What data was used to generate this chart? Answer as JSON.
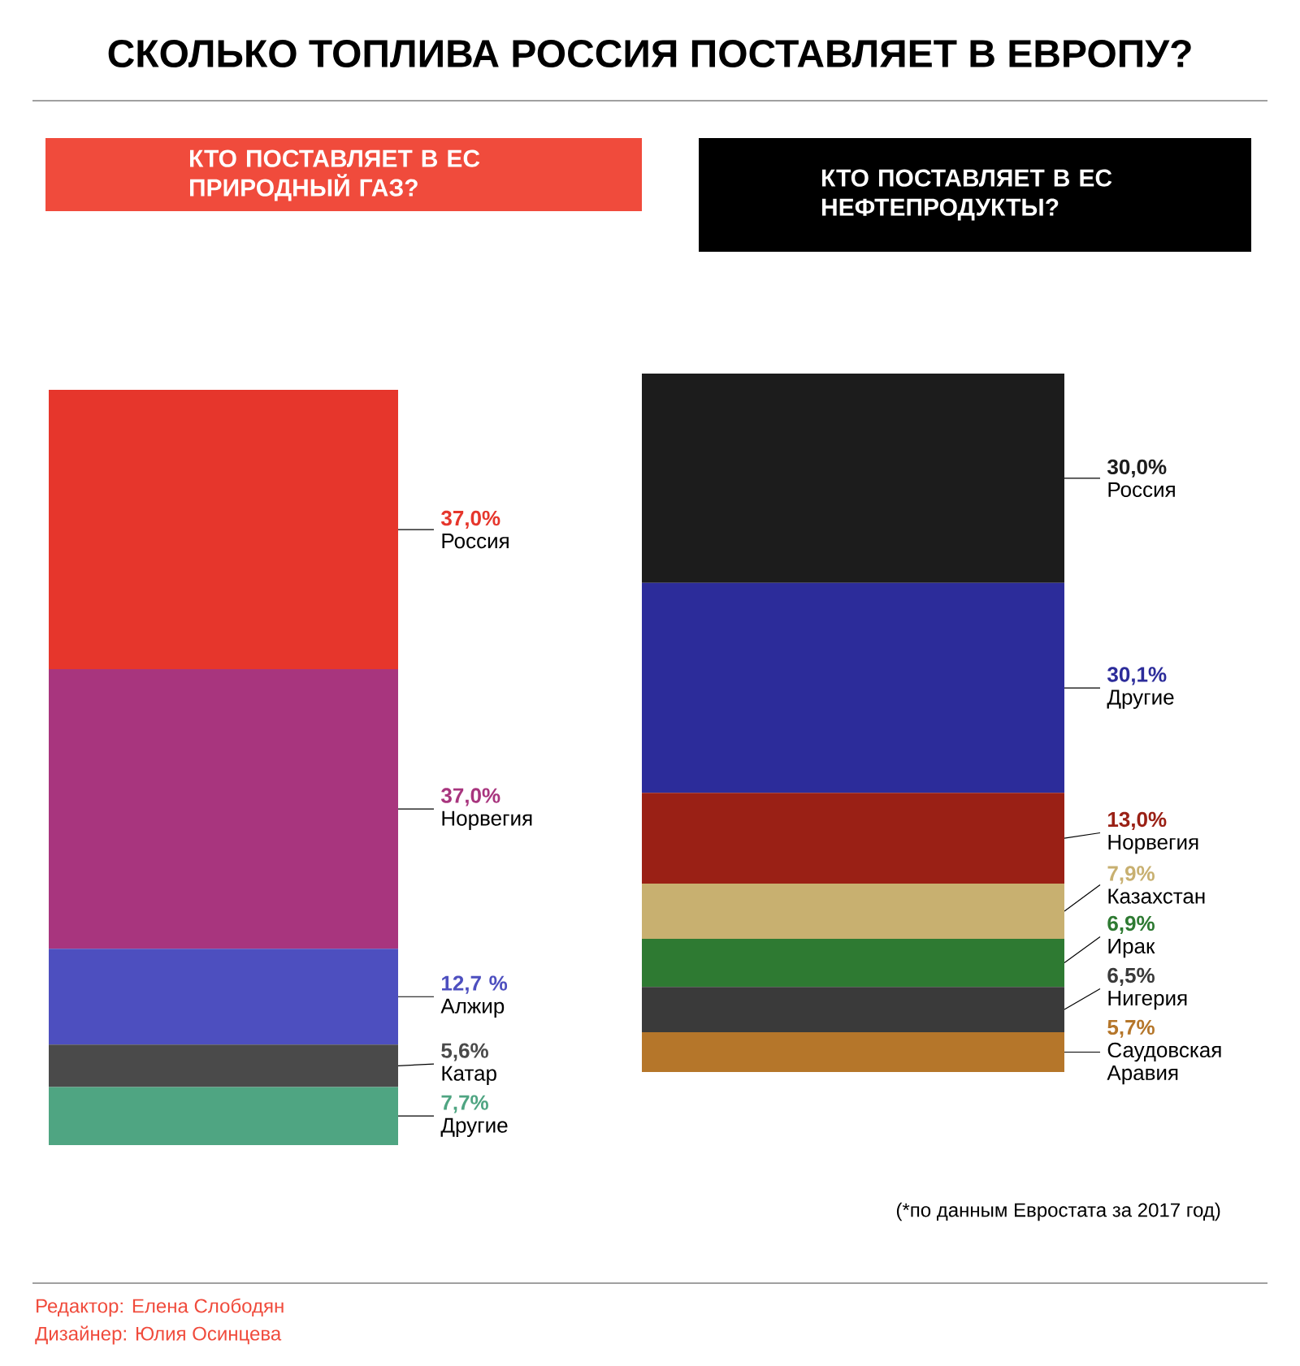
{
  "chart_data": [
    {
      "type": "bar",
      "title": "СКОЛЬКО ТОПЛИВА РОССИЯ ПОСТАВЛЯЕТ В ЕВРОПУ?",
      "subtitle": "КТО ПОСТАВЛЯЕТ В ЕС ПРИРОДНЫЙ ГАЗ?",
      "stacked": true,
      "categories": [
        null
      ],
      "series": [
        {
          "name": "Другие",
          "color": "#4fa582",
          "values": [
            7.7
          ],
          "value_labels": [
            "7,7%"
          ]
        },
        {
          "name": "Катар",
          "color": "#4a4a4a",
          "values": [
            5.6
          ],
          "value_labels": [
            "5,6%"
          ]
        },
        {
          "name": "Алжир",
          "color": "#4d4fbf",
          "values": [
            12.7
          ],
          "value_labels": [
            "12,7 %"
          ]
        },
        {
          "name": "Норвегия",
          "color": "#a8357e",
          "values": [
            37.0
          ],
          "value_labels": [
            "37,0%"
          ]
        },
        {
          "name": "Россия",
          "color": "#e6362c",
          "values": [
            37.0
          ],
          "value_labels": [
            "37,0%"
          ]
        }
      ],
      "annotations": [
        "Редактор: Елена Слободян",
        "Дизайнер: Юлия Осинцева"
      ]
    },
    {
      "type": "bar",
      "title": "КТО ПОСТАВЛЯЕТ В ЕС НЕФТЕПРОДУКТЫ?",
      "stacked": true,
      "categories": [
        null
      ],
      "series": [
        {
          "name": "Саудовская Аравия",
          "color": "#b5762a",
          "values": [
            5.7
          ],
          "value_labels": [
            "5,7%"
          ]
        },
        {
          "name": "Нигерия",
          "color": "#3a3a3a",
          "values": [
            6.5
          ],
          "value_labels": [
            "6,5%"
          ]
        },
        {
          "name": "Ирак",
          "color": "#2e7a32",
          "values": [
            6.9
          ],
          "value_labels": [
            "6,9%"
          ]
        },
        {
          "name": "Казахстан",
          "color": "#c8b070",
          "values": [
            7.9
          ],
          "value_labels": [
            "7,9%"
          ]
        },
        {
          "name": "Норвегия",
          "color": "#9a2015",
          "values": [
            13.0
          ],
          "value_labels": [
            "13,0%"
          ]
        },
        {
          "name": "Другие",
          "color": "#2c2c9a",
          "values": [
            30.1
          ],
          "value_labels": [
            "30,1%"
          ]
        },
        {
          "name": "Россия",
          "color": "#1c1c1c",
          "values": [
            30.0
          ],
          "value_labels": [
            "30,0%"
          ]
        }
      ],
      "annotations": [
        "(*по данным Евростата за 2017 год)"
      ]
    }
  ]
}
